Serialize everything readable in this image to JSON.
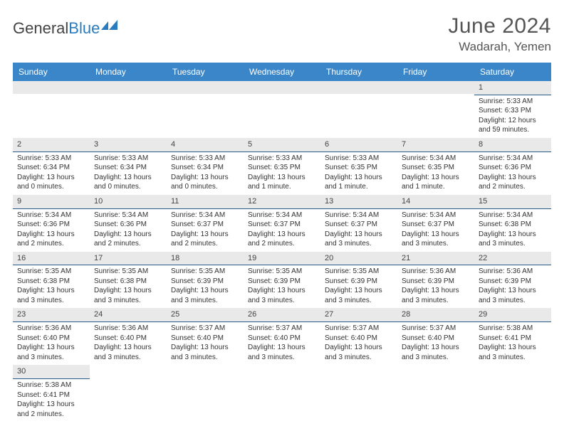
{
  "logo": {
    "text_general": "General",
    "text_blue": "Blue"
  },
  "title": "June 2024",
  "location": "Wadarah, Yemen",
  "header_bg": "#3a86c8",
  "header_fg": "#ffffff",
  "accent_color": "#2a7cbf",
  "daynum_bg": "#e9e9e9",
  "daynum_border": "#2a5a8a",
  "text_color": "#333333",
  "day_headers": [
    "Sunday",
    "Monday",
    "Tuesday",
    "Wednesday",
    "Thursday",
    "Friday",
    "Saturday"
  ],
  "weeks": [
    [
      null,
      null,
      null,
      null,
      null,
      null,
      {
        "n": "1",
        "sunrise": "Sunrise: 5:33 AM",
        "sunset": "Sunset: 6:33 PM",
        "daylight": "Daylight: 12 hours and 59 minutes."
      }
    ],
    [
      {
        "n": "2",
        "sunrise": "Sunrise: 5:33 AM",
        "sunset": "Sunset: 6:34 PM",
        "daylight": "Daylight: 13 hours and 0 minutes."
      },
      {
        "n": "3",
        "sunrise": "Sunrise: 5:33 AM",
        "sunset": "Sunset: 6:34 PM",
        "daylight": "Daylight: 13 hours and 0 minutes."
      },
      {
        "n": "4",
        "sunrise": "Sunrise: 5:33 AM",
        "sunset": "Sunset: 6:34 PM",
        "daylight": "Daylight: 13 hours and 0 minutes."
      },
      {
        "n": "5",
        "sunrise": "Sunrise: 5:33 AM",
        "sunset": "Sunset: 6:35 PM",
        "daylight": "Daylight: 13 hours and 1 minute."
      },
      {
        "n": "6",
        "sunrise": "Sunrise: 5:33 AM",
        "sunset": "Sunset: 6:35 PM",
        "daylight": "Daylight: 13 hours and 1 minute."
      },
      {
        "n": "7",
        "sunrise": "Sunrise: 5:34 AM",
        "sunset": "Sunset: 6:35 PM",
        "daylight": "Daylight: 13 hours and 1 minute."
      },
      {
        "n": "8",
        "sunrise": "Sunrise: 5:34 AM",
        "sunset": "Sunset: 6:36 PM",
        "daylight": "Daylight: 13 hours and 2 minutes."
      }
    ],
    [
      {
        "n": "9",
        "sunrise": "Sunrise: 5:34 AM",
        "sunset": "Sunset: 6:36 PM",
        "daylight": "Daylight: 13 hours and 2 minutes."
      },
      {
        "n": "10",
        "sunrise": "Sunrise: 5:34 AM",
        "sunset": "Sunset: 6:36 PM",
        "daylight": "Daylight: 13 hours and 2 minutes."
      },
      {
        "n": "11",
        "sunrise": "Sunrise: 5:34 AM",
        "sunset": "Sunset: 6:37 PM",
        "daylight": "Daylight: 13 hours and 2 minutes."
      },
      {
        "n": "12",
        "sunrise": "Sunrise: 5:34 AM",
        "sunset": "Sunset: 6:37 PM",
        "daylight": "Daylight: 13 hours and 2 minutes."
      },
      {
        "n": "13",
        "sunrise": "Sunrise: 5:34 AM",
        "sunset": "Sunset: 6:37 PM",
        "daylight": "Daylight: 13 hours and 3 minutes."
      },
      {
        "n": "14",
        "sunrise": "Sunrise: 5:34 AM",
        "sunset": "Sunset: 6:37 PM",
        "daylight": "Daylight: 13 hours and 3 minutes."
      },
      {
        "n": "15",
        "sunrise": "Sunrise: 5:34 AM",
        "sunset": "Sunset: 6:38 PM",
        "daylight": "Daylight: 13 hours and 3 minutes."
      }
    ],
    [
      {
        "n": "16",
        "sunrise": "Sunrise: 5:35 AM",
        "sunset": "Sunset: 6:38 PM",
        "daylight": "Daylight: 13 hours and 3 minutes."
      },
      {
        "n": "17",
        "sunrise": "Sunrise: 5:35 AM",
        "sunset": "Sunset: 6:38 PM",
        "daylight": "Daylight: 13 hours and 3 minutes."
      },
      {
        "n": "18",
        "sunrise": "Sunrise: 5:35 AM",
        "sunset": "Sunset: 6:39 PM",
        "daylight": "Daylight: 13 hours and 3 minutes."
      },
      {
        "n": "19",
        "sunrise": "Sunrise: 5:35 AM",
        "sunset": "Sunset: 6:39 PM",
        "daylight": "Daylight: 13 hours and 3 minutes."
      },
      {
        "n": "20",
        "sunrise": "Sunrise: 5:35 AM",
        "sunset": "Sunset: 6:39 PM",
        "daylight": "Daylight: 13 hours and 3 minutes."
      },
      {
        "n": "21",
        "sunrise": "Sunrise: 5:36 AM",
        "sunset": "Sunset: 6:39 PM",
        "daylight": "Daylight: 13 hours and 3 minutes."
      },
      {
        "n": "22",
        "sunrise": "Sunrise: 5:36 AM",
        "sunset": "Sunset: 6:39 PM",
        "daylight": "Daylight: 13 hours and 3 minutes."
      }
    ],
    [
      {
        "n": "23",
        "sunrise": "Sunrise: 5:36 AM",
        "sunset": "Sunset: 6:40 PM",
        "daylight": "Daylight: 13 hours and 3 minutes."
      },
      {
        "n": "24",
        "sunrise": "Sunrise: 5:36 AM",
        "sunset": "Sunset: 6:40 PM",
        "daylight": "Daylight: 13 hours and 3 minutes."
      },
      {
        "n": "25",
        "sunrise": "Sunrise: 5:37 AM",
        "sunset": "Sunset: 6:40 PM",
        "daylight": "Daylight: 13 hours and 3 minutes."
      },
      {
        "n": "26",
        "sunrise": "Sunrise: 5:37 AM",
        "sunset": "Sunset: 6:40 PM",
        "daylight": "Daylight: 13 hours and 3 minutes."
      },
      {
        "n": "27",
        "sunrise": "Sunrise: 5:37 AM",
        "sunset": "Sunset: 6:40 PM",
        "daylight": "Daylight: 13 hours and 3 minutes."
      },
      {
        "n": "28",
        "sunrise": "Sunrise: 5:37 AM",
        "sunset": "Sunset: 6:40 PM",
        "daylight": "Daylight: 13 hours and 3 minutes."
      },
      {
        "n": "29",
        "sunrise": "Sunrise: 5:38 AM",
        "sunset": "Sunset: 6:41 PM",
        "daylight": "Daylight: 13 hours and 3 minutes."
      }
    ],
    [
      {
        "n": "30",
        "sunrise": "Sunrise: 5:38 AM",
        "sunset": "Sunset: 6:41 PM",
        "daylight": "Daylight: 13 hours and 2 minutes."
      },
      null,
      null,
      null,
      null,
      null,
      null
    ]
  ]
}
